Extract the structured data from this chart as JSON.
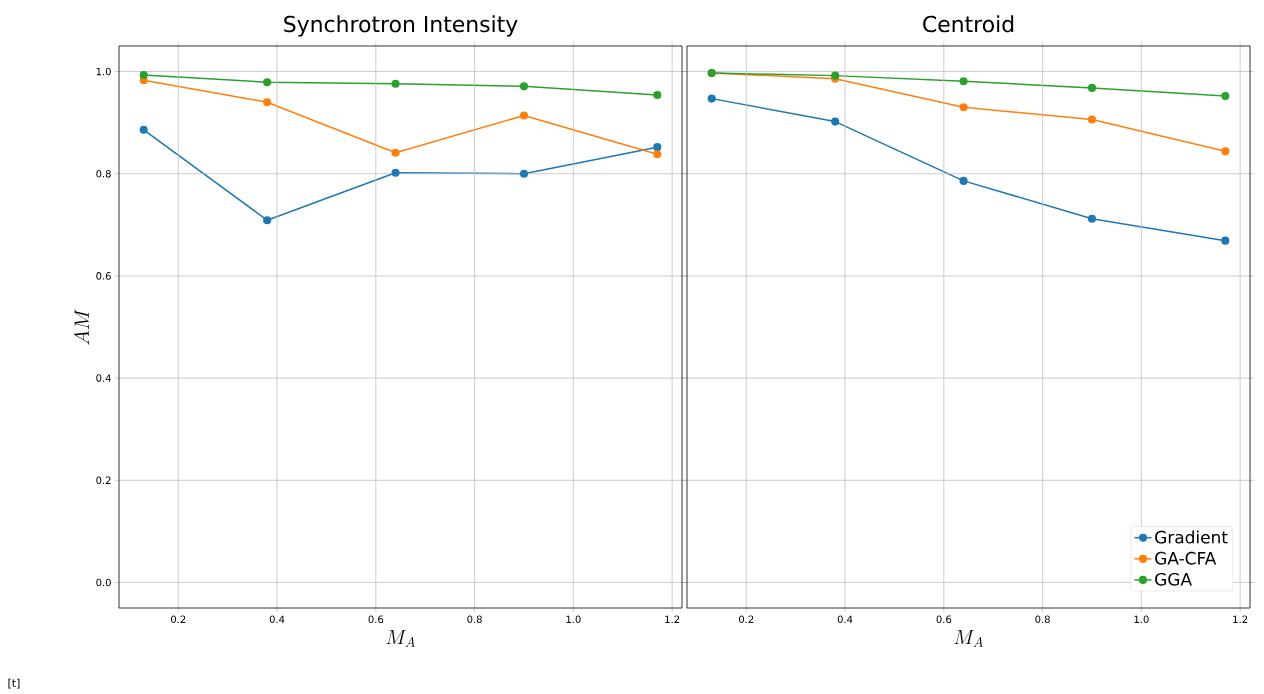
{
  "chart_data": [
    {
      "type": "line",
      "title": "Synchrotron Intensity",
      "xlabel": "M_A",
      "ylabel": "AM",
      "x": [
        0.13,
        0.38,
        0.64,
        0.9,
        1.17
      ],
      "series": [
        {
          "color": "#1f77b4",
          "values": [
            0.886,
            0.709,
            0.802,
            0.8,
            0.852
          ]
        },
        {
          "color": "#ff7f0e",
          "values": [
            0.983,
            0.94,
            0.841,
            0.914,
            0.838
          ]
        },
        {
          "color": "#2ca02c",
          "values": [
            0.993,
            0.979,
            0.976,
            0.971,
            0.954
          ]
        }
      ],
      "xlim": [
        0.08,
        1.22
      ],
      "ylim": [
        -0.05,
        1.05
      ],
      "xticks": [
        0.2,
        0.4,
        0.6,
        0.8,
        {
          "value": 1,
          "label": "1.0"
        },
        1.2
      ],
      "yticks": [
        {
          "value": 0,
          "label": "0.0"
        },
        0.2,
        0.4,
        0.6,
        0.8,
        {
          "value": 1,
          "label": "1.0"
        }
      ],
      "grid": true,
      "marker": "circle",
      "legend": false,
      "annotations": [
        "[t]"
      ]
    },
    {
      "type": "line",
      "title": "Centroid",
      "xlabel": "M_A",
      "x": [
        0.13,
        0.38,
        0.64,
        0.9,
        1.17
      ],
      "series": [
        {
          "name": "Gradient",
          "color": "#1f77b4",
          "values": [
            0.947,
            0.902,
            0.786,
            0.712,
            0.669
          ]
        },
        {
          "name": "GA-CFA",
          "color": "#ff7f0e",
          "values": [
            0.997,
            0.986,
            0.93,
            0.906,
            0.844
          ]
        },
        {
          "name": "GGA",
          "color": "#2ca02c",
          "values": [
            0.997,
            0.992,
            0.981,
            0.968,
            0.952
          ]
        }
      ],
      "xlim": [
        0.08,
        1.22
      ],
      "ylim": [
        -0.05,
        1.05
      ],
      "xticks": [
        0.2,
        0.4,
        0.6,
        0.8,
        {
          "value": 1,
          "label": "1.0"
        },
        1.2
      ],
      "yticks": [
        0,
        0.2,
        0.4,
        0.6,
        0.8,
        1
      ],
      "grid": true,
      "marker": "circle",
      "legend": "bottom right",
      "tick_labels": "x"
    }
  ]
}
